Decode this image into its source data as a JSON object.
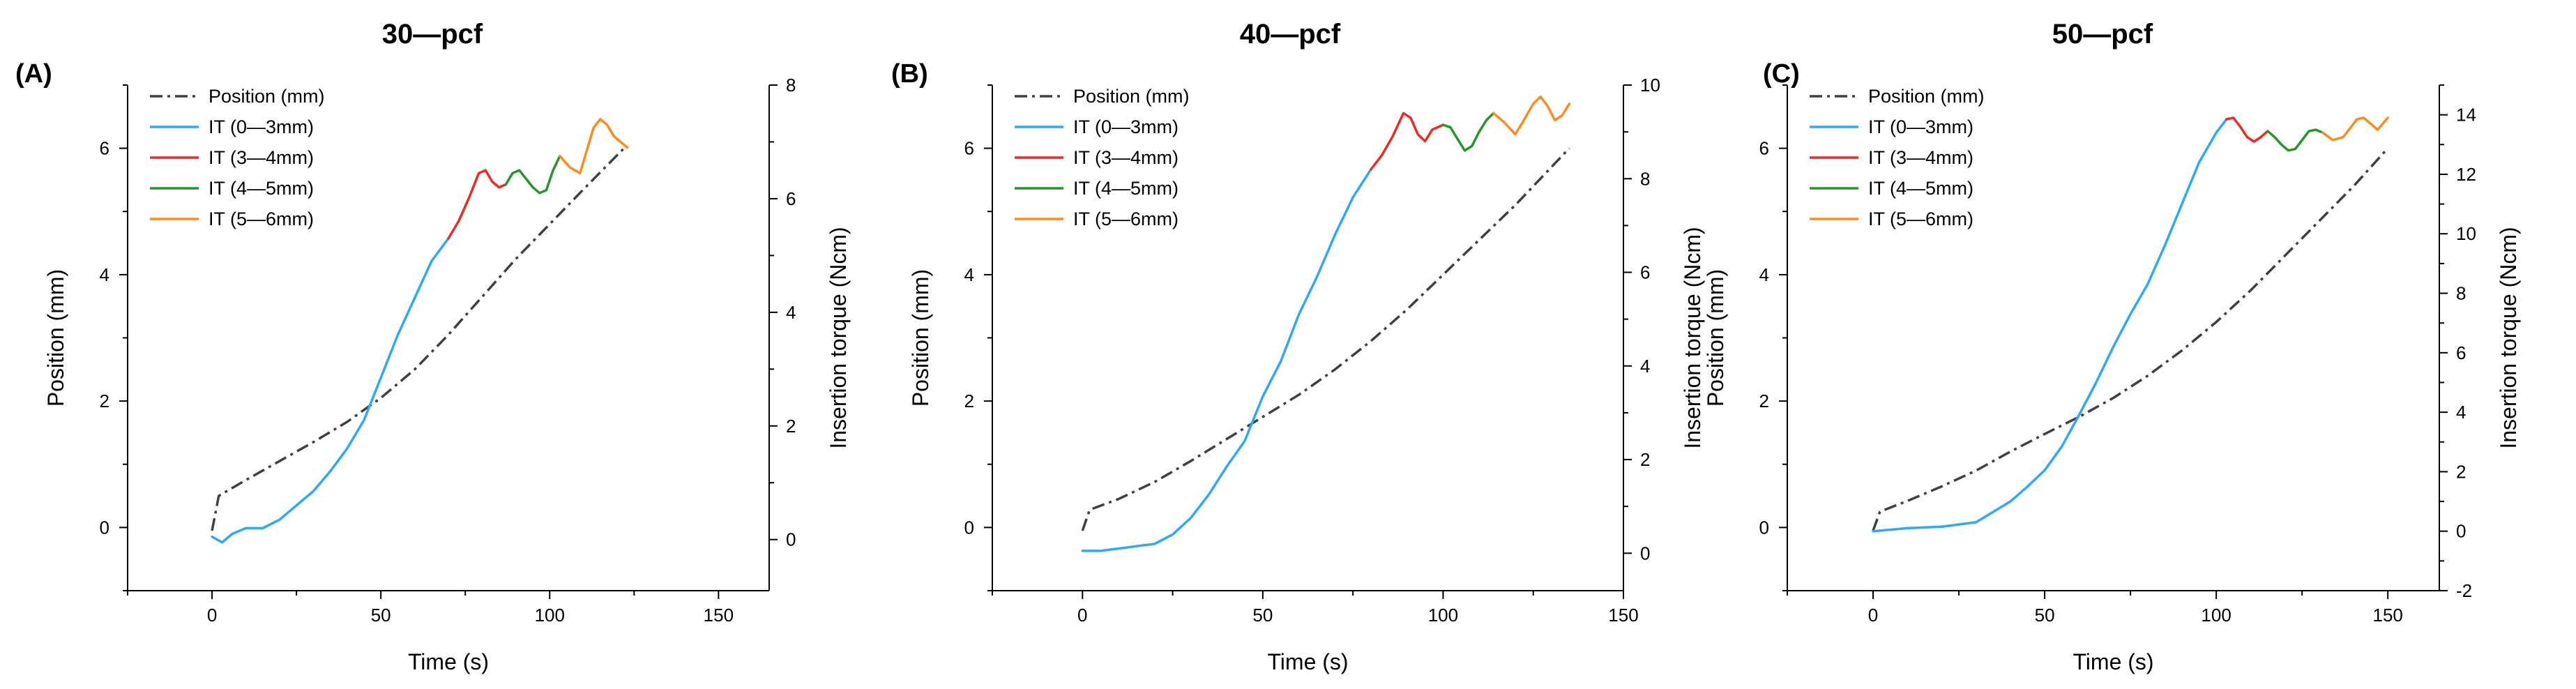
{
  "chart_data": [
    {
      "type": "line",
      "panel_letter": "(A)",
      "title": "30—pcf",
      "xlabel": "Time (s)",
      "ylabel": "Position (mm)",
      "y2label": "Insertion torque (Ncm)",
      "xlim": [
        -25,
        165
      ],
      "ylim": [
        -1,
        7
      ],
      "y2lim": [
        -0.9,
        8
      ],
      "xticks": [
        0,
        50,
        100,
        150
      ],
      "yticks": [
        0,
        2,
        4,
        6
      ],
      "y2ticks": [
        0,
        2,
        4,
        6,
        8
      ],
      "legend_position": "top-left",
      "series": [
        {
          "name": "Position (mm)",
          "color": "#404040",
          "dash": "dashdot",
          "axis": "left",
          "x": [
            0,
            2,
            10,
            20,
            30,
            40,
            50,
            60,
            70,
            80,
            90,
            100,
            110,
            122
          ],
          "y": [
            -0.05,
            0.5,
            0.75,
            1.05,
            1.35,
            1.67,
            2.05,
            2.5,
            3.05,
            3.65,
            4.25,
            4.8,
            5.35,
            6.0
          ]
        },
        {
          "name": "IT (0—3mm)",
          "color": "#2ea9f2",
          "axis": "right",
          "x": [
            0,
            3,
            6,
            10,
            15,
            20,
            25,
            30,
            35,
            40,
            45,
            50,
            55,
            60,
            65,
            70
          ],
          "y": [
            0.05,
            -0.05,
            0.1,
            0.2,
            0.2,
            0.35,
            0.6,
            0.85,
            1.2,
            1.6,
            2.1,
            2.85,
            3.6,
            4.25,
            4.9,
            5.3
          ]
        },
        {
          "name": "IT (3—4mm)",
          "color": "#ee2a24",
          "axis": "right",
          "x": [
            70,
            73,
            76,
            79,
            81,
            83,
            85,
            87
          ],
          "y": [
            5.3,
            5.6,
            6.0,
            6.45,
            6.5,
            6.3,
            6.2,
            6.25
          ]
        },
        {
          "name": "IT (4—5mm)",
          "color": "#27952a",
          "axis": "right",
          "x": [
            87,
            89,
            91,
            93,
            95,
            97,
            99,
            101,
            103
          ],
          "y": [
            6.25,
            6.45,
            6.5,
            6.35,
            6.2,
            6.1,
            6.15,
            6.5,
            6.75
          ]
        },
        {
          "name": "IT (5—6mm)",
          "color": "#ff8c1a",
          "axis": "right",
          "x": [
            103,
            106,
            109,
            111,
            113,
            115,
            117,
            119,
            121,
            123
          ],
          "y": [
            6.75,
            6.55,
            6.45,
            6.85,
            7.25,
            7.4,
            7.3,
            7.1,
            7.0,
            6.9
          ]
        }
      ]
    },
    {
      "type": "line",
      "panel_letter": "(B)",
      "title": "40—pcf",
      "xlabel": "Time (s)",
      "ylabel": "Position (mm)",
      "y2label": "Insertion torque (Ncm)",
      "xlim": [
        -25,
        150
      ],
      "ylim": [
        -1,
        7
      ],
      "y2lim": [
        -0.8,
        10
      ],
      "xticks": [
        0,
        50,
        100,
        150
      ],
      "yticks": [
        0,
        2,
        4,
        6
      ],
      "y2ticks": [
        0,
        2,
        4,
        6,
        8,
        10
      ],
      "legend_position": "top-left",
      "series": [
        {
          "name": "Position (mm)",
          "color": "#404040",
          "dash": "dashdot",
          "axis": "left",
          "x": [
            0,
            2,
            10,
            20,
            30,
            40,
            50,
            60,
            70,
            80,
            90,
            100,
            110,
            120,
            135
          ],
          "y": [
            -0.05,
            0.28,
            0.45,
            0.72,
            1.05,
            1.4,
            1.75,
            2.1,
            2.5,
            2.95,
            3.45,
            4.0,
            4.55,
            5.1,
            6.0
          ]
        },
        {
          "name": "IT (0—3mm)",
          "color": "#2ea9f2",
          "axis": "right",
          "x": [
            0,
            5,
            10,
            15,
            20,
            25,
            30,
            35,
            40,
            45,
            50,
            55,
            60,
            65,
            70,
            75,
            80
          ],
          "y": [
            0.05,
            0.05,
            0.1,
            0.15,
            0.2,
            0.4,
            0.75,
            1.25,
            1.85,
            2.4,
            3.35,
            4.1,
            5.1,
            5.9,
            6.8,
            7.6,
            8.2
          ]
        },
        {
          "name": "IT (3—4mm)",
          "color": "#ee2a24",
          "axis": "right",
          "x": [
            80,
            83,
            86,
            89,
            91,
            93,
            95,
            97,
            100
          ],
          "y": [
            8.2,
            8.5,
            8.9,
            9.4,
            9.3,
            8.95,
            8.8,
            9.05,
            9.15
          ]
        },
        {
          "name": "IT (4—5mm)",
          "color": "#27952a",
          "axis": "right",
          "x": [
            100,
            102,
            104,
            106,
            108,
            110,
            112,
            114
          ],
          "y": [
            9.15,
            9.1,
            8.85,
            8.6,
            8.7,
            9.0,
            9.25,
            9.4
          ]
        },
        {
          "name": "IT (5—6mm)",
          "color": "#ff8c1a",
          "axis": "right",
          "x": [
            114,
            117,
            120,
            122,
            125,
            127,
            129,
            131,
            133,
            135
          ],
          "y": [
            9.4,
            9.2,
            8.95,
            9.2,
            9.6,
            9.75,
            9.55,
            9.25,
            9.35,
            9.6
          ]
        }
      ]
    },
    {
      "type": "line",
      "panel_letter": "(C)",
      "title": "50—pcf",
      "xlabel": "Time (s)",
      "ylabel": "Position (mm)",
      "y2label": "Insertion torque (Ncm)",
      "xlim": [
        -25,
        165
      ],
      "ylim": [
        -1,
        7
      ],
      "y2lim": [
        -2,
        15
      ],
      "xticks": [
        0,
        50,
        100,
        150
      ],
      "yticks": [
        0,
        2,
        4,
        6
      ],
      "y2ticks": [
        -2,
        0,
        2,
        4,
        6,
        8,
        10,
        12,
        14
      ],
      "legend_position": "top-left",
      "series": [
        {
          "name": "Position (mm)",
          "color": "#404040",
          "dash": "dashdot",
          "axis": "left",
          "x": [
            0,
            2,
            10,
            20,
            30,
            40,
            50,
            60,
            70,
            80,
            90,
            100,
            110,
            120,
            130,
            140,
            150
          ],
          "y": [
            -0.05,
            0.25,
            0.42,
            0.65,
            0.9,
            1.2,
            1.48,
            1.75,
            2.05,
            2.4,
            2.8,
            3.25,
            3.75,
            4.3,
            4.85,
            5.4,
            6.0
          ]
        },
        {
          "name": "IT (0—3mm)",
          "color": "#2ea9f2",
          "axis": "right",
          "x": [
            0,
            5,
            10,
            20,
            30,
            40,
            45,
            50,
            55,
            60,
            65,
            70,
            75,
            80,
            85,
            90,
            95,
            100,
            103
          ],
          "y": [
            0.0,
            0.05,
            0.1,
            0.15,
            0.3,
            1.0,
            1.5,
            2.05,
            2.85,
            3.9,
            5.0,
            6.2,
            7.3,
            8.3,
            9.6,
            11.0,
            12.4,
            13.4,
            13.85
          ]
        },
        {
          "name": "IT (3—4mm)",
          "color": "#ee2a24",
          "axis": "right",
          "x": [
            103,
            105,
            107,
            109,
            111,
            113,
            115
          ],
          "y": [
            13.85,
            13.9,
            13.6,
            13.25,
            13.1,
            13.25,
            13.45
          ]
        },
        {
          "name": "IT (4—5mm)",
          "color": "#27952a",
          "axis": "right",
          "x": [
            115,
            117,
            119,
            121,
            123,
            125,
            127,
            129,
            131
          ],
          "y": [
            13.45,
            13.25,
            13.0,
            12.8,
            12.85,
            13.15,
            13.45,
            13.5,
            13.4
          ]
        },
        {
          "name": "IT (5—6mm)",
          "color": "#ff8c1a",
          "axis": "right",
          "x": [
            131,
            134,
            137,
            139,
            141,
            143,
            145,
            147,
            150
          ],
          "y": [
            13.4,
            13.15,
            13.25,
            13.55,
            13.85,
            13.9,
            13.7,
            13.5,
            13.9
          ]
        }
      ]
    }
  ]
}
